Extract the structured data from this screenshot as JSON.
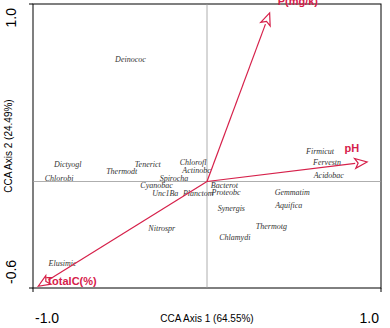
{
  "chart_data": {
    "type": "biplot",
    "x_label": "CCA Axis 1 (64.55%)",
    "y_label": "CCA Axis 2 (24.49%)",
    "xlim": [
      -1.0,
      1.0
    ],
    "ylim": [
      -0.6,
      1.0
    ],
    "xticks": [
      {
        "value": -1.0,
        "label": "-1.0"
      },
      {
        "value": 1.0,
        "label": "1.0"
      }
    ],
    "yticks": [
      {
        "value": -0.6,
        "label": "-0.6"
      },
      {
        "value": 1.0,
        "label": "1.0"
      }
    ],
    "points": {
      "labels": [
        "Deinococ",
        "Dictyogl",
        "Tenerict",
        "Thermodt",
        "Chlorofl",
        "Actinobc",
        "Firmicut",
        "Fervestn",
        "Acidobac",
        "Chlorobi",
        "Spirocha",
        "Cyanobac",
        "Bacterot",
        "Proteobc",
        "Unc1Ba",
        "Planctom",
        "Gemmatim",
        "Synergis",
        "Aquifica",
        "Nitrospr",
        "Thermotg",
        "Chlamydi",
        "Elusimic"
      ],
      "x": [
        -0.44,
        -0.8,
        -0.34,
        -0.49,
        -0.08,
        -0.06,
        0.65,
        0.69,
        0.7,
        -0.85,
        -0.19,
        -0.29,
        0.1,
        0.11,
        -0.24,
        -0.05,
        0.49,
        0.14,
        0.47,
        -0.26,
        0.37,
        0.16,
        -0.83
      ],
      "y": [
        0.69,
        0.1,
        0.1,
        0.06,
        0.11,
        0.065,
        0.17,
        0.11,
        0.035,
        0.02,
        0.02,
        -0.02,
        -0.02,
        -0.06,
        -0.065,
        -0.065,
        -0.06,
        -0.15,
        -0.13,
        -0.26,
        -0.25,
        -0.31,
        -0.46
      ],
      "color": "#333333"
    },
    "vectors": {
      "labels": [
        "P(mg/k)",
        "pH",
        "TotalC(%)"
      ],
      "x": [
        0.36,
        0.92,
        -0.97
      ],
      "y": [
        0.95,
        0.11,
        -0.59
      ],
      "color": "#d6204a"
    }
  }
}
